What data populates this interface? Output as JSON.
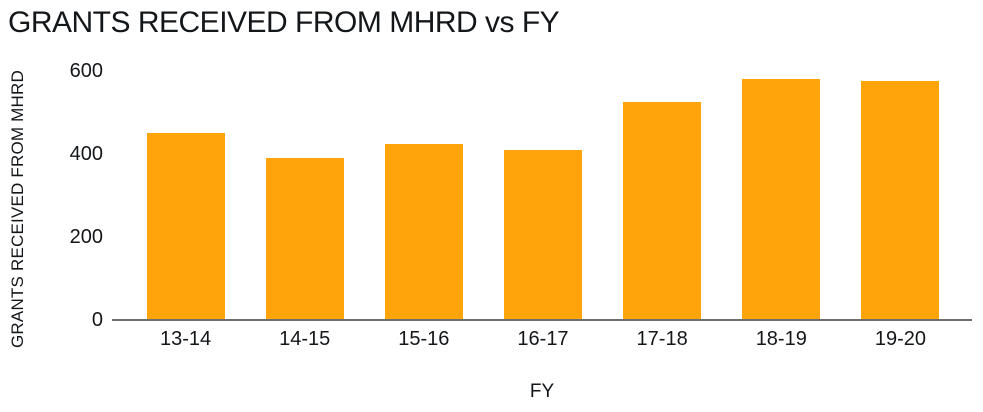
{
  "chart_data": {
    "type": "bar",
    "title": "GRANTS RECEIVED FROM MHRD vs FY",
    "categories": [
      "13-14",
      "14-15",
      "15-16",
      "16-17",
      "17-18",
      "18-19",
      "19-20"
    ],
    "values": [
      450,
      390,
      425,
      410,
      525,
      580,
      575
    ],
    "xlabel": "FY",
    "ylabel": "GRANTS RECEIVED FROM MHRD",
    "ylim": [
      0,
      600
    ],
    "yticks": [
      0,
      200,
      400,
      600
    ],
    "grid": false,
    "legend": "none",
    "bar_color": "#FFA40B",
    "axis_line_color": "#6E6E6E",
    "text_color": "#14171A",
    "background_color": "#FFFFFF"
  }
}
